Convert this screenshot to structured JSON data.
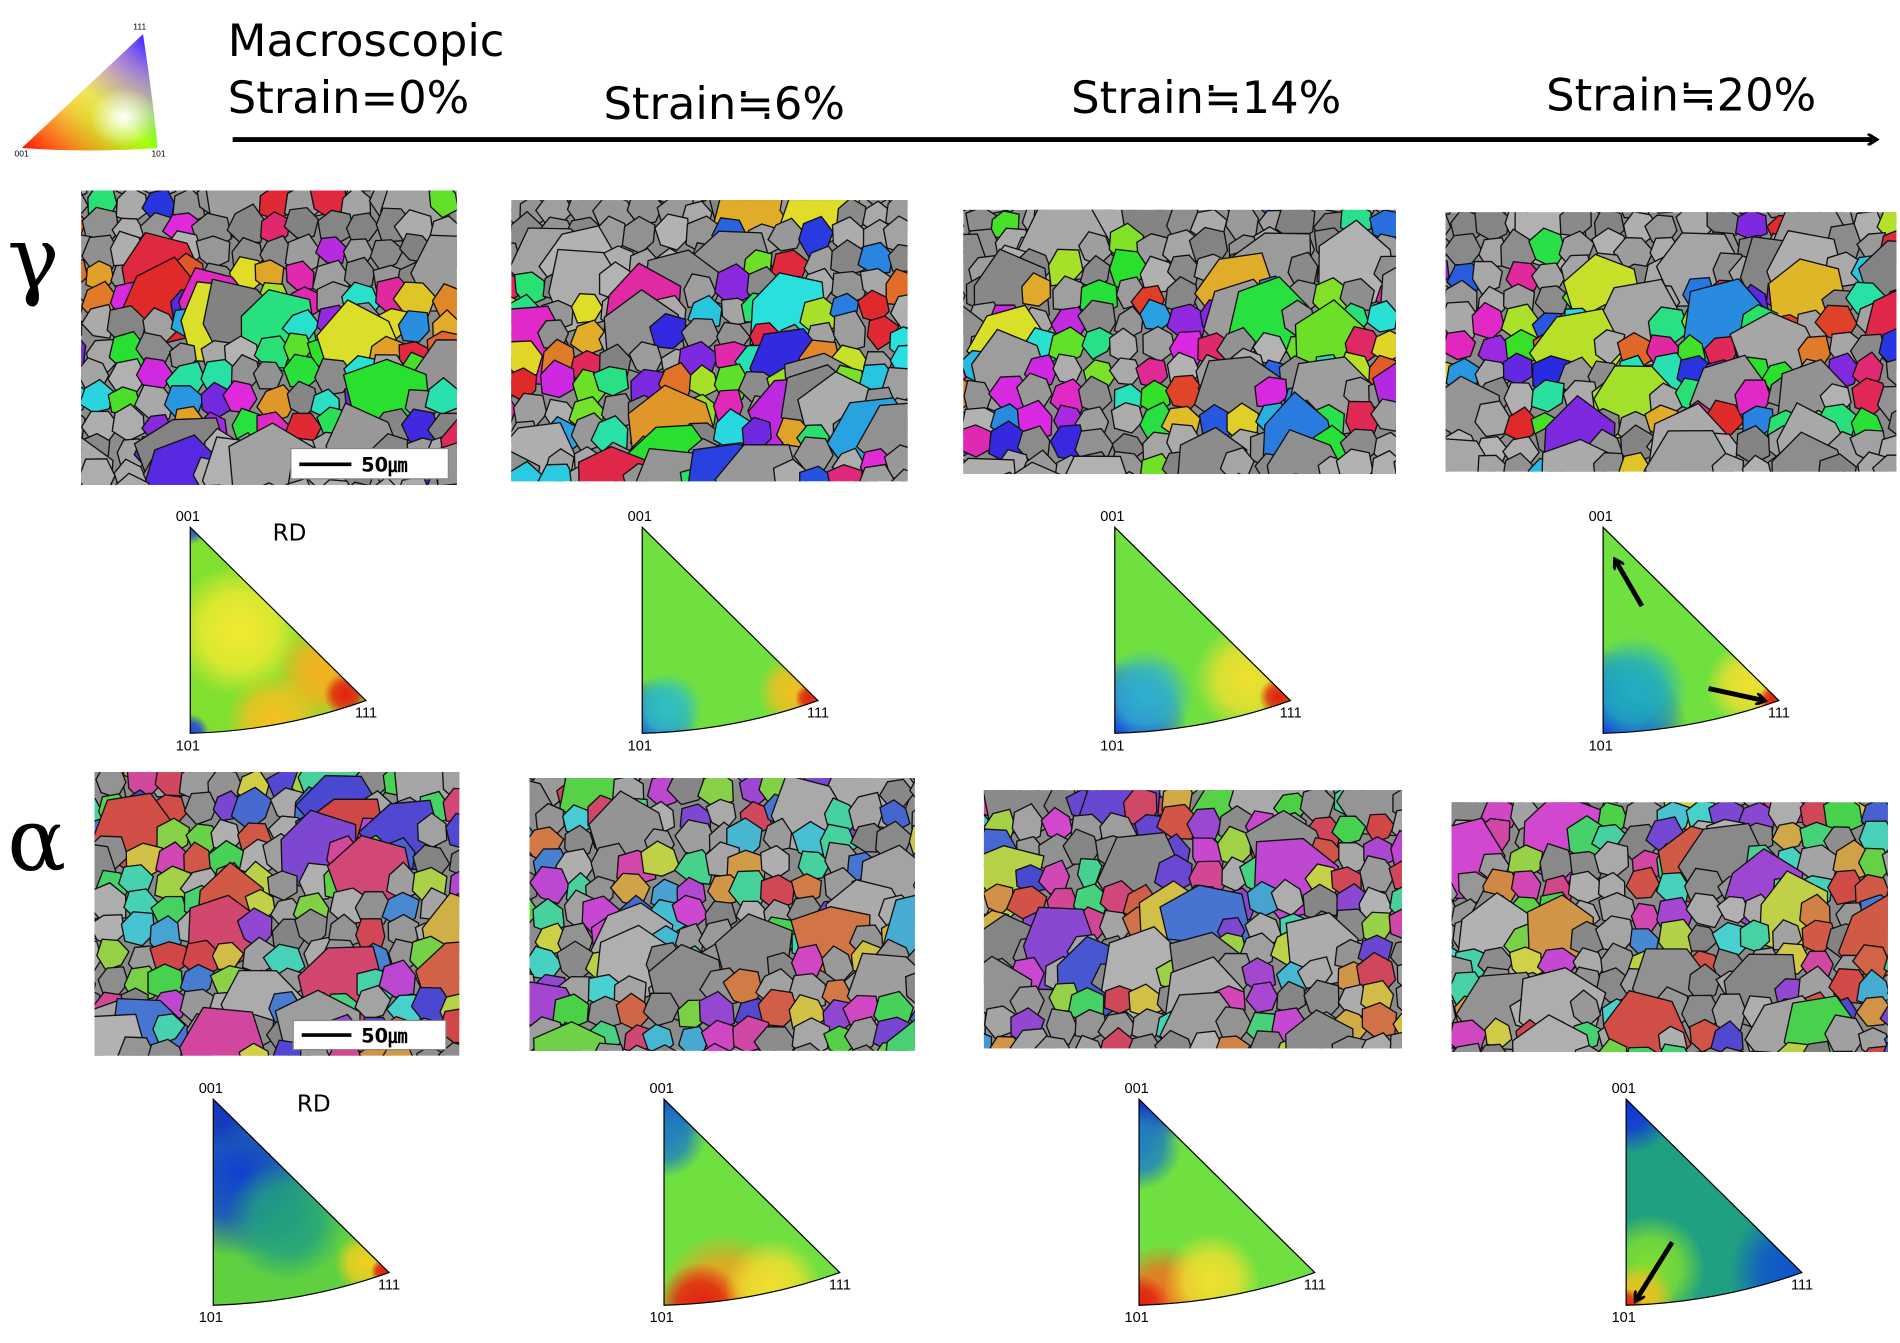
{
  "header": {
    "title": "Macroscopic",
    "strain_labels": [
      "Strain=0%",
      "Strain≒6%",
      "Strain≒14%",
      "Strain≒20%"
    ]
  },
  "color_key": {
    "corners": [
      "001",
      "101",
      "111"
    ]
  },
  "rows": [
    {
      "phase": "γ",
      "scale_bar": "50㎛",
      "ipf_direction": "RD",
      "ipf_corners": [
        "001",
        "101",
        "111"
      ]
    },
    {
      "phase": "α",
      "scale_bar": "50㎛",
      "ipf_direction": "RD",
      "ipf_corners": [
        "001",
        "101",
        "111"
      ]
    }
  ]
}
